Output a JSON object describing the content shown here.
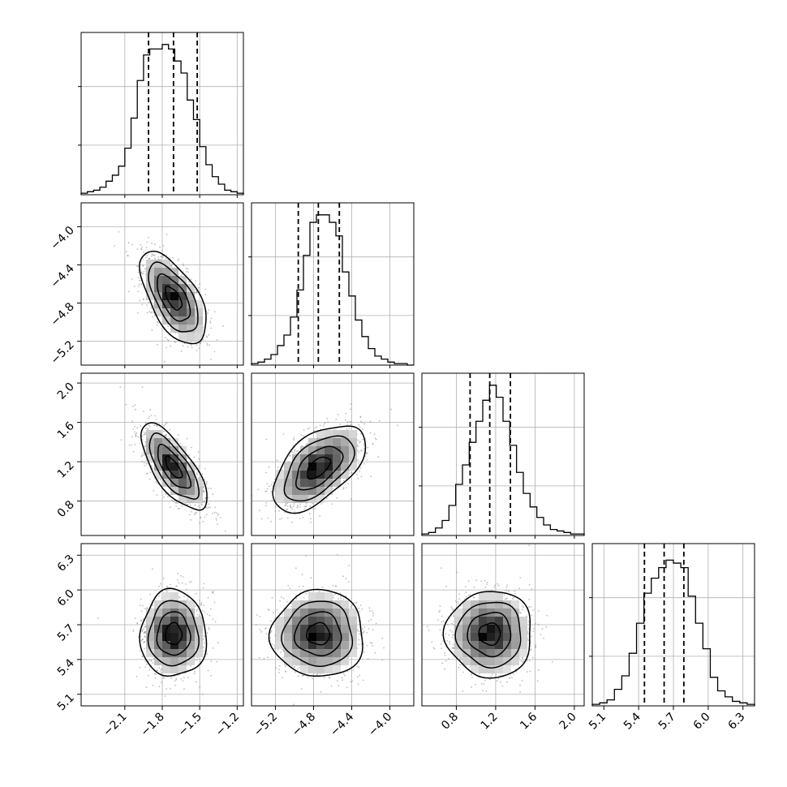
{
  "chart_data": {
    "type": "corner",
    "grid": true,
    "parameters": [
      {
        "ticks": [
          -2.1,
          -1.8,
          -1.5,
          -1.2
        ],
        "tick_labels": [
          "−2.1",
          "−1.8",
          "−1.5",
          "−1.2"
        ],
        "range": [
          -2.45,
          -1.15
        ],
        "quantiles": [
          -1.91,
          -1.71,
          -1.52
        ],
        "hist_counts": [
          1,
          2,
          3,
          5,
          9,
          13,
          19,
          31,
          51,
          76,
          93,
          97,
          97,
          100,
          97,
          89,
          81,
          63,
          50,
          32,
          20,
          12,
          7,
          3,
          2,
          1
        ],
        "hist_ymax": 108,
        "hist_gridlines": [
          33,
          72
        ]
      },
      {
        "ticks": [
          -5.2,
          -4.8,
          -4.4,
          -4.0
        ],
        "tick_labels": [
          "−5.2",
          "−4.8",
          "−4.4",
          "−4.0"
        ],
        "range": [
          -5.45,
          -3.75
        ],
        "quantiles": [
          -4.96,
          -4.75,
          -4.53
        ],
        "hist_counts": [
          1,
          2,
          4,
          7,
          13,
          20,
          32,
          50,
          73,
          95,
          100,
          100,
          95,
          86,
          62,
          46,
          30,
          19,
          11,
          6,
          4,
          2,
          1,
          1,
          0
        ],
        "hist_ymax": 108,
        "hist_gridlines": [
          33,
          72
        ]
      },
      {
        "ticks": [
          0.8,
          1.2,
          1.6,
          2.0
        ],
        "tick_labels": [
          "0.8",
          "1.2",
          "1.6",
          "2.0"
        ],
        "range": [
          0.45,
          2.1
        ],
        "quantiles": [
          0.94,
          1.14,
          1.35
        ],
        "hist_counts": [
          1,
          2,
          5,
          10,
          20,
          34,
          47,
          62,
          76,
          90,
          100,
          92,
          76,
          60,
          42,
          28,
          19,
          12,
          7,
          4,
          3,
          2,
          1,
          1
        ],
        "hist_ymax": 108,
        "hist_gridlines": [
          33,
          72
        ]
      },
      {
        "ticks": [
          5.1,
          5.4,
          5.7,
          6.0,
          6.3
        ],
        "tick_labels": [
          "5.1",
          "5.4",
          "5.7",
          "6.0",
          "6.3"
        ],
        "range": [
          5.0,
          6.4
        ],
        "quantiles": [
          5.45,
          5.62,
          5.79
        ],
        "hist_counts": [
          1,
          2,
          4,
          11,
          20,
          35,
          55,
          75,
          85,
          92,
          97,
          95,
          92,
          73,
          55,
          38,
          19,
          10,
          6,
          3,
          2,
          1
        ],
        "hist_ymax": 108,
        "hist_gridlines": [
          33,
          72
        ]
      }
    ],
    "pairs": [
      {
        "row": 1,
        "col": 0,
        "center": [
          -1.71,
          -4.75
        ],
        "sd": [
          0.12,
          0.22
        ],
        "corr": -0.6
      },
      {
        "row": 2,
        "col": 0,
        "center": [
          -1.71,
          1.14
        ],
        "sd": [
          0.12,
          0.2
        ],
        "corr": -0.72
      },
      {
        "row": 2,
        "col": 1,
        "center": [
          -4.75,
          1.14
        ],
        "sd": [
          0.22,
          0.2
        ],
        "corr": 0.55
      },
      {
        "row": 3,
        "col": 0,
        "center": [
          -1.71,
          5.62
        ],
        "sd": [
          0.12,
          0.17
        ],
        "corr": 0.0
      },
      {
        "row": 3,
        "col": 1,
        "center": [
          -4.75,
          5.62
        ],
        "sd": [
          0.22,
          0.17
        ],
        "corr": 0.0
      },
      {
        "row": 3,
        "col": 2,
        "center": [
          1.14,
          5.62
        ],
        "sd": [
          0.2,
          0.17
        ],
        "corr": 0.0
      }
    ],
    "contour_levels_sigma": [
      0.5,
      1.0,
      1.5,
      2.0
    ],
    "colors": {
      "line": "#000000",
      "points": "#888888",
      "grid": "#b0b0b0"
    }
  }
}
